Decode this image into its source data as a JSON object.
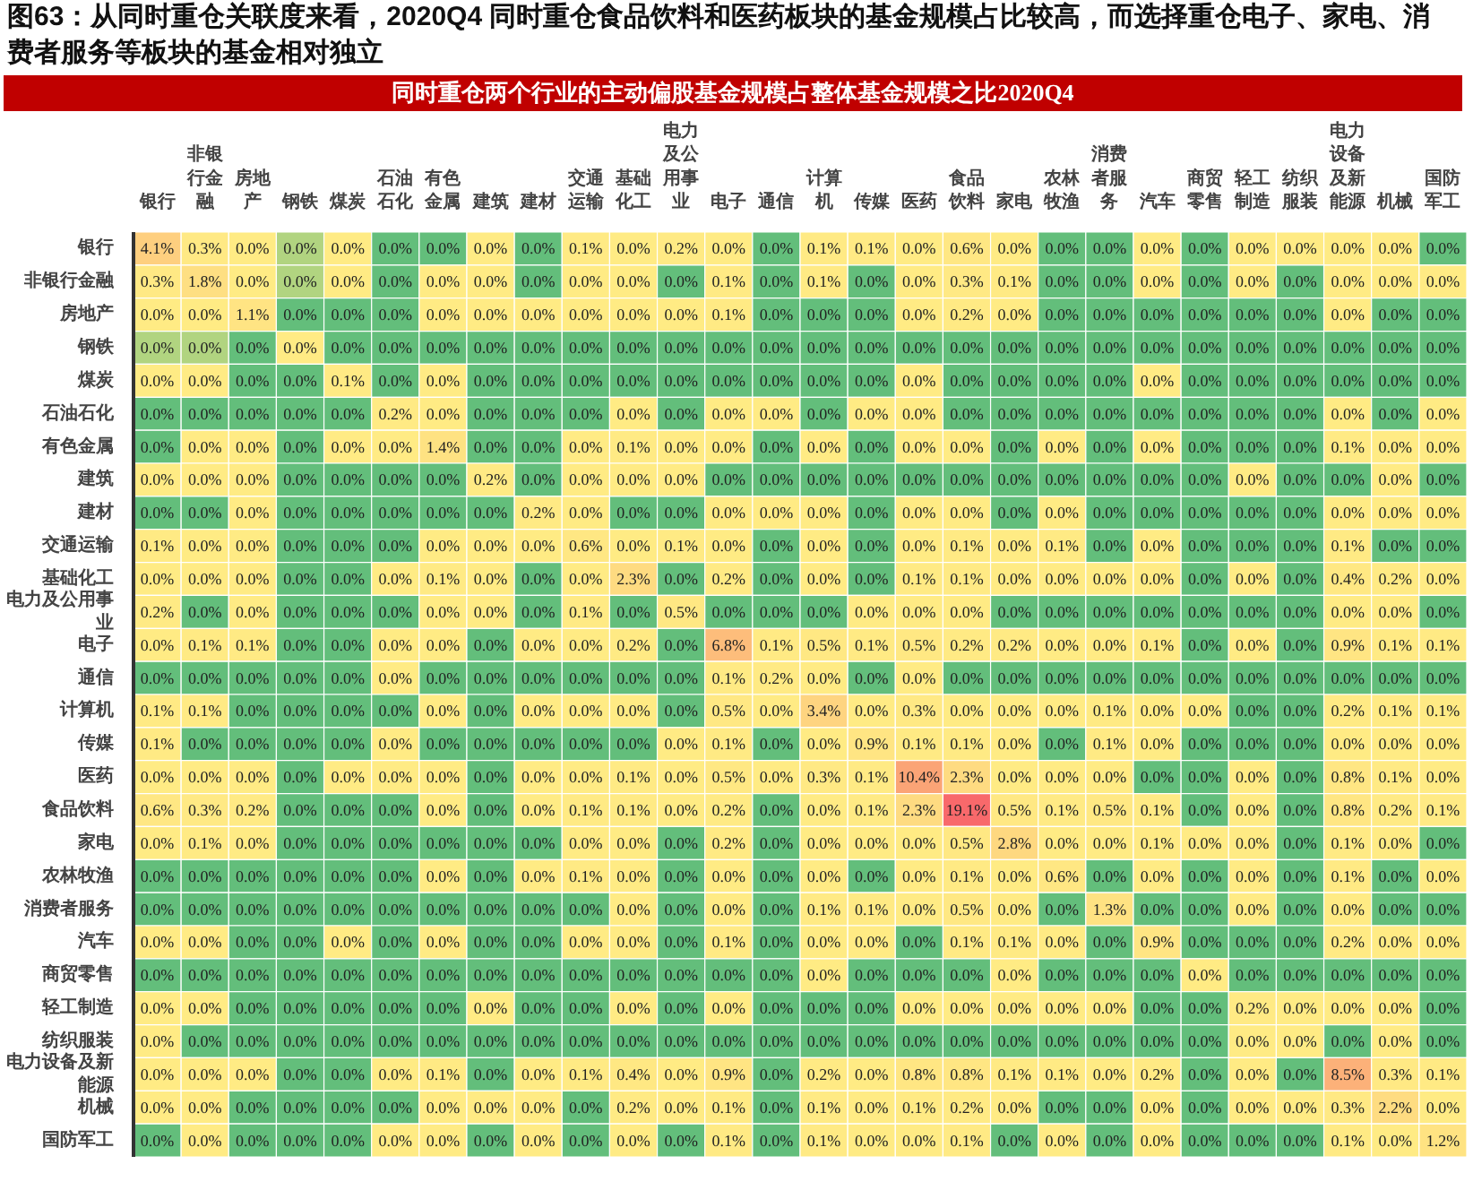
{
  "chart_data": {
    "type": "heatmap",
    "title": "图63：从同时重仓关联度来看，2020Q4 同时重仓食品饮料和医药板块的基金规模占比较高，而选择重仓电子、家电、消费者服务等板块的基金相对独立",
    "subtitle": "同时重仓两个行业的主动偏股基金规模占整体基金规模之比2020Q4",
    "categories": [
      "银行",
      "非银行金融",
      "房地产",
      "钢铁",
      "煤炭",
      "石油石化",
      "有色金属",
      "建筑",
      "建材",
      "交通运输",
      "基础化工",
      "电力及公用事业",
      "电子",
      "通信",
      "计算机",
      "传媒",
      "医药",
      "食品饮料",
      "家电",
      "农林牧渔",
      "消费者服务",
      "汽车",
      "商贸零售",
      "轻工制造",
      "纺织服装",
      "电力设备及新能源",
      "机械",
      "国防军工"
    ],
    "y_categories": [
      "银行",
      "非银行金融",
      "房地产",
      "钢铁",
      "煤炭",
      "石油石化",
      "有色金属",
      "建筑",
      "建材",
      "交通运输",
      "基础化工",
      "电力及公用事业",
      "电子",
      "通信",
      "计算机",
      "传媒",
      "医药",
      "食品饮料",
      "家电",
      "农林牧渔",
      "消费者服务",
      "汽车",
      "商贸零售",
      "轻工制造",
      "纺织服装",
      "电力设备及新能源",
      "机械",
      "国防军工"
    ],
    "cells": [
      [
        4.1,
        0.3,
        0.01,
        0.005,
        0.01,
        0,
        0,
        0.01,
        0,
        0.1,
        0.01,
        0.2,
        0.01,
        0,
        0.1,
        0.1,
        0.01,
        0.6,
        0.01,
        0,
        0,
        0.01,
        0,
        0.01,
        0.01,
        0.01,
        0.01,
        0
      ],
      [
        0.3,
        1.8,
        0.01,
        0.005,
        0.01,
        0,
        0.01,
        0.01,
        0,
        0.01,
        0.01,
        0,
        0.1,
        0,
        0.1,
        0,
        0.01,
        0.3,
        0.1,
        0,
        0,
        0.01,
        0,
        0.01,
        0,
        0.01,
        0.01,
        0.01
      ],
      [
        0.01,
        0.01,
        1.1,
        0,
        0,
        0,
        0.01,
        0.01,
        0.01,
        0.01,
        0.01,
        0.01,
        0.1,
        0,
        0,
        0,
        0.01,
        0.2,
        0.01,
        0,
        0,
        0,
        0,
        0,
        0,
        0.01,
        0,
        0
      ],
      [
        0.005,
        0.005,
        0,
        0.01,
        0,
        0,
        0,
        0,
        0,
        0,
        0,
        0,
        0,
        0,
        0,
        0,
        0,
        0,
        0,
        0,
        0,
        0,
        0,
        0,
        0,
        0,
        0,
        0
      ],
      [
        0.01,
        0.01,
        0,
        0,
        0.1,
        0,
        0.01,
        0,
        0,
        0,
        0,
        0,
        0,
        0,
        0,
        0,
        0.01,
        0,
        0,
        0,
        0,
        0.01,
        0,
        0,
        0,
        0,
        0,
        0
      ],
      [
        0,
        0,
        0,
        0,
        0,
        0.2,
        0.01,
        0,
        0,
        0,
        0.01,
        0,
        0.01,
        0.01,
        0,
        0.01,
        0.01,
        0,
        0,
        0,
        0,
        0,
        0,
        0,
        0,
        0.01,
        0,
        0.01
      ],
      [
        0,
        0.01,
        0.01,
        0,
        0.01,
        0.01,
        1.4,
        0,
        0,
        0.01,
        0.1,
        0.01,
        0.01,
        0,
        0.01,
        0,
        0.01,
        0.01,
        0,
        0.01,
        0,
        0.01,
        0,
        0,
        0,
        0.1,
        0.01,
        0.01
      ],
      [
        0.01,
        0.01,
        0.01,
        0,
        0,
        0,
        0,
        0.2,
        0,
        0.01,
        0.01,
        0.01,
        0,
        0,
        0,
        0,
        0,
        0,
        0,
        0,
        0,
        0,
        0,
        0.01,
        0,
        0,
        0.01,
        0
      ],
      [
        0,
        0,
        0.01,
        0,
        0,
        0,
        0,
        0,
        0.2,
        0.01,
        0,
        0,
        0.01,
        0.01,
        0.01,
        0,
        0.01,
        0.01,
        0,
        0.01,
        0,
        0,
        0,
        0,
        0,
        0.01,
        0.01,
        0.01
      ],
      [
        0.1,
        0.01,
        0.01,
        0,
        0,
        0,
        0.01,
        0.01,
        0.01,
        0.6,
        0.01,
        0.1,
        0.01,
        0,
        0.01,
        0,
        0.01,
        0.1,
        0.01,
        0.1,
        0,
        0.01,
        0,
        0,
        0,
        0.1,
        0,
        0
      ],
      [
        0.01,
        0.01,
        0.01,
        0,
        0,
        0.01,
        0.1,
        0.01,
        0,
        0.01,
        2.3,
        0,
        0.2,
        0,
        0.01,
        0,
        0.1,
        0.1,
        0.01,
        0.01,
        0.01,
        0.01,
        0,
        0.01,
        0,
        0.4,
        0.2,
        0.01
      ],
      [
        0.2,
        0,
        0.01,
        0,
        0,
        0,
        0.01,
        0.01,
        0,
        0.1,
        0,
        0.5,
        0,
        0,
        0,
        0.01,
        0.01,
        0.01,
        0,
        0,
        0,
        0,
        0,
        0,
        0,
        0.01,
        0.01,
        0
      ],
      [
        0.01,
        0.1,
        0.1,
        0,
        0,
        0.01,
        0.01,
        0,
        0.01,
        0.01,
        0.2,
        0,
        6.8,
        0.1,
        0.5,
        0.1,
        0.5,
        0.2,
        0.2,
        0.01,
        0.01,
        0.1,
        0,
        0.01,
        0,
        0.9,
        0.1,
        0.1
      ],
      [
        0,
        0,
        0,
        0,
        0,
        0.01,
        0,
        0,
        0,
        0,
        0,
        0,
        0.1,
        0.2,
        0.01,
        0,
        0.01,
        0,
        0,
        0,
        0,
        0,
        0,
        0,
        0,
        0,
        0,
        0
      ],
      [
        0.1,
        0.1,
        0,
        0,
        0,
        0,
        0.01,
        0,
        0.01,
        0.01,
        0.01,
        0,
        0.5,
        0.01,
        3.4,
        0.01,
        0.3,
        0.01,
        0.01,
        0.01,
        0.1,
        0.01,
        0.01,
        0,
        0,
        0.2,
        0.1,
        0.1
      ],
      [
        0.1,
        0,
        0,
        0,
        0,
        0.01,
        0,
        0,
        0,
        0,
        0,
        0.01,
        0.1,
        0,
        0.01,
        0.9,
        0.1,
        0.1,
        0.01,
        0,
        0.1,
        0.01,
        0,
        0,
        0,
        0.01,
        0.01,
        0.01
      ],
      [
        0.01,
        0.01,
        0.01,
        0,
        0.01,
        0.01,
        0.01,
        0,
        0.01,
        0.01,
        0.1,
        0.01,
        0.5,
        0.01,
        0.3,
        0.1,
        10.4,
        2.3,
        0.01,
        0.01,
        0.01,
        0,
        0,
        0.01,
        0,
        0.8,
        0.1,
        0.01
      ],
      [
        0.6,
        0.3,
        0.2,
        0,
        0,
        0,
        0.01,
        0,
        0.01,
        0.1,
        0.1,
        0.01,
        0.2,
        0,
        0.01,
        0.1,
        2.3,
        19.1,
        0.5,
        0.1,
        0.5,
        0.1,
        0,
        0.01,
        0,
        0.8,
        0.2,
        0.1
      ],
      [
        0.01,
        0.1,
        0.01,
        0,
        0,
        0,
        0,
        0,
        0,
        0.01,
        0.01,
        0,
        0.2,
        0,
        0.01,
        0.01,
        0.01,
        0.5,
        2.8,
        0.01,
        0.01,
        0.1,
        0.01,
        0.01,
        0,
        0.1,
        0.01,
        0
      ],
      [
        0,
        0,
        0,
        0,
        0,
        0,
        0.01,
        0,
        0.01,
        0.1,
        0.01,
        0,
        0.01,
        0,
        0.01,
        0,
        0.01,
        0.1,
        0.01,
        0.6,
        0,
        0.01,
        0,
        0.01,
        0,
        0.1,
        0,
        0.01
      ],
      [
        0,
        0,
        0,
        0,
        0,
        0,
        0,
        0,
        0,
        0,
        0.01,
        0,
        0.01,
        0,
        0.1,
        0.1,
        0.01,
        0.5,
        0.01,
        0,
        1.3,
        0,
        0,
        0.01,
        0,
        0.01,
        0,
        0
      ],
      [
        0.01,
        0.01,
        0,
        0,
        0.01,
        0,
        0.01,
        0,
        0,
        0.01,
        0.01,
        0,
        0.1,
        0,
        0.01,
        0.01,
        0,
        0.1,
        0.1,
        0.01,
        0,
        0.9,
        0,
        0,
        0,
        0.2,
        0.01,
        0.01
      ],
      [
        0,
        0,
        0,
        0,
        0,
        0,
        0,
        0,
        0,
        0,
        0,
        0,
        0,
        0,
        0.01,
        0,
        0,
        0,
        0.01,
        0,
        0,
        0,
        0.01,
        0,
        0,
        0,
        0,
        0
      ],
      [
        0.01,
        0.01,
        0,
        0,
        0,
        0,
        0,
        0.01,
        0,
        0,
        0.01,
        0,
        0.01,
        0,
        0,
        0,
        0.01,
        0.01,
        0.01,
        0.01,
        0.01,
        0,
        0,
        0.2,
        0.01,
        0.01,
        0.01,
        0
      ],
      [
        0.01,
        0,
        0,
        0,
        0,
        0,
        0,
        0,
        0,
        0,
        0,
        0,
        0,
        0,
        0,
        0,
        0,
        0,
        0,
        0,
        0,
        0,
        0,
        0.01,
        0.01,
        0,
        0.01,
        0
      ],
      [
        0.01,
        0.01,
        0.01,
        0,
        0,
        0.01,
        0.1,
        0,
        0.01,
        0.1,
        0.4,
        0.01,
        0.9,
        0,
        0.2,
        0.01,
        0.8,
        0.8,
        0.1,
        0.1,
        0.01,
        0.2,
        0,
        0.01,
        0,
        8.5,
        0.3,
        0.1
      ],
      [
        0.01,
        0.01,
        0,
        0,
        0,
        0,
        0.01,
        0.01,
        0.01,
        0,
        0.2,
        0.01,
        0.1,
        0,
        0.1,
        0.01,
        0.1,
        0.2,
        0.01,
        0,
        0,
        0.01,
        0,
        0.01,
        0.01,
        0.3,
        2.2,
        0.01
      ],
      [
        0,
        0.01,
        0,
        0,
        0,
        0.01,
        0.01,
        0,
        0.01,
        0,
        0.01,
        0,
        0.1,
        0,
        0.1,
        0.01,
        0.01,
        0.1,
        0,
        0.01,
        0,
        0.01,
        0,
        0,
        0,
        0.1,
        0.01,
        1.2
      ]
    ],
    "cell_labels": [
      [
        "4.1%",
        "0.3%",
        "0.0%",
        "0.0%",
        "0.0%",
        "0.0%",
        "0.0%",
        "0.0%",
        "0.0%",
        "0.1%",
        "0.0%",
        "0.2%",
        "0.0%",
        "0.0%",
        "0.1%",
        "0.1%",
        "0.0%",
        "0.6%",
        "0.0%",
        "0.0%",
        "0.0%",
        "0.0%",
        "0.0%",
        "0.0%",
        "0.0%",
        "0.0%",
        "0.0%",
        "0.0%"
      ],
      [
        "0.3%",
        "1.8%",
        "0.0%",
        "0.0%",
        "0.0%",
        "0.0%",
        "0.0%",
        "0.0%",
        "0.0%",
        "0.0%",
        "0.0%",
        "0.0%",
        "0.1%",
        "0.0%",
        "0.1%",
        "0.0%",
        "0.0%",
        "0.3%",
        "0.1%",
        "0.0%",
        "0.0%",
        "0.0%",
        "0.0%",
        "0.0%",
        "0.0%",
        "0.0%",
        "0.0%",
        "0.0%"
      ],
      [
        "0.0%",
        "0.0%",
        "1.1%",
        "0.0%",
        "0.0%",
        "0.0%",
        "0.0%",
        "0.0%",
        "0.0%",
        "0.0%",
        "0.0%",
        "0.0%",
        "0.1%",
        "0.0%",
        "0.0%",
        "0.0%",
        "0.0%",
        "0.2%",
        "0.0%",
        "0.0%",
        "0.0%",
        "0.0%",
        "0.0%",
        "0.0%",
        "0.0%",
        "0.0%",
        "0.0%",
        "0.0%"
      ],
      [
        "0.0%",
        "0.0%",
        "0.0%",
        "0.0%",
        "0.0%",
        "0.0%",
        "0.0%",
        "0.0%",
        "0.0%",
        "0.0%",
        "0.0%",
        "0.0%",
        "0.0%",
        "0.0%",
        "0.0%",
        "0.0%",
        "0.0%",
        "0.0%",
        "0.0%",
        "0.0%",
        "0.0%",
        "0.0%",
        "0.0%",
        "0.0%",
        "0.0%",
        "0.0%",
        "0.0%",
        "0.0%"
      ],
      [
        "0.0%",
        "0.0%",
        "0.0%",
        "0.0%",
        "0.1%",
        "0.0%",
        "0.0%",
        "0.0%",
        "0.0%",
        "0.0%",
        "0.0%",
        "0.0%",
        "0.0%",
        "0.0%",
        "0.0%",
        "0.0%",
        "0.0%",
        "0.0%",
        "0.0%",
        "0.0%",
        "0.0%",
        "0.0%",
        "0.0%",
        "0.0%",
        "0.0%",
        "0.0%",
        "0.0%",
        "0.0%"
      ],
      [
        "0.0%",
        "0.0%",
        "0.0%",
        "0.0%",
        "0.0%",
        "0.2%",
        "0.0%",
        "0.0%",
        "0.0%",
        "0.0%",
        "0.0%",
        "0.0%",
        "0.0%",
        "0.0%",
        "0.0%",
        "0.0%",
        "0.0%",
        "0.0%",
        "0.0%",
        "0.0%",
        "0.0%",
        "0.0%",
        "0.0%",
        "0.0%",
        "0.0%",
        "0.0%",
        "0.0%",
        "0.0%"
      ],
      [
        "0.0%",
        "0.0%",
        "0.0%",
        "0.0%",
        "0.0%",
        "0.0%",
        "1.4%",
        "0.0%",
        "0.0%",
        "0.0%",
        "0.1%",
        "0.0%",
        "0.0%",
        "0.0%",
        "0.0%",
        "0.0%",
        "0.0%",
        "0.0%",
        "0.0%",
        "0.0%",
        "0.0%",
        "0.0%",
        "0.0%",
        "0.0%",
        "0.0%",
        "0.1%",
        "0.0%",
        "0.0%"
      ],
      [
        "0.0%",
        "0.0%",
        "0.0%",
        "0.0%",
        "0.0%",
        "0.0%",
        "0.0%",
        "0.2%",
        "0.0%",
        "0.0%",
        "0.0%",
        "0.0%",
        "0.0%",
        "0.0%",
        "0.0%",
        "0.0%",
        "0.0%",
        "0.0%",
        "0.0%",
        "0.0%",
        "0.0%",
        "0.0%",
        "0.0%",
        "0.0%",
        "0.0%",
        "0.0%",
        "0.0%",
        "0.0%"
      ],
      [
        "0.0%",
        "0.0%",
        "0.0%",
        "0.0%",
        "0.0%",
        "0.0%",
        "0.0%",
        "0.0%",
        "0.2%",
        "0.0%",
        "0.0%",
        "0.0%",
        "0.0%",
        "0.0%",
        "0.0%",
        "0.0%",
        "0.0%",
        "0.0%",
        "0.0%",
        "0.0%",
        "0.0%",
        "0.0%",
        "0.0%",
        "0.0%",
        "0.0%",
        "0.0%",
        "0.0%",
        "0.0%"
      ],
      [
        "0.1%",
        "0.0%",
        "0.0%",
        "0.0%",
        "0.0%",
        "0.0%",
        "0.0%",
        "0.0%",
        "0.0%",
        "0.6%",
        "0.0%",
        "0.1%",
        "0.0%",
        "0.0%",
        "0.0%",
        "0.0%",
        "0.0%",
        "0.1%",
        "0.0%",
        "0.1%",
        "0.0%",
        "0.0%",
        "0.0%",
        "0.0%",
        "0.0%",
        "0.1%",
        "0.0%",
        "0.0%"
      ],
      [
        "0.0%",
        "0.0%",
        "0.0%",
        "0.0%",
        "0.0%",
        "0.0%",
        "0.1%",
        "0.0%",
        "0.0%",
        "0.0%",
        "2.3%",
        "0.0%",
        "0.2%",
        "0.0%",
        "0.0%",
        "0.0%",
        "0.1%",
        "0.1%",
        "0.0%",
        "0.0%",
        "0.0%",
        "0.0%",
        "0.0%",
        "0.0%",
        "0.0%",
        "0.4%",
        "0.2%",
        "0.0%"
      ],
      [
        "0.2%",
        "0.0%",
        "0.0%",
        "0.0%",
        "0.0%",
        "0.0%",
        "0.0%",
        "0.0%",
        "0.0%",
        "0.1%",
        "0.0%",
        "0.5%",
        "0.0%",
        "0.0%",
        "0.0%",
        "0.0%",
        "0.0%",
        "0.0%",
        "0.0%",
        "0.0%",
        "0.0%",
        "0.0%",
        "0.0%",
        "0.0%",
        "0.0%",
        "0.0%",
        "0.0%",
        "0.0%"
      ],
      [
        "0.0%",
        "0.1%",
        "0.1%",
        "0.0%",
        "0.0%",
        "0.0%",
        "0.0%",
        "0.0%",
        "0.0%",
        "0.0%",
        "0.2%",
        "0.0%",
        "6.8%",
        "0.1%",
        "0.5%",
        "0.1%",
        "0.5%",
        "0.2%",
        "0.2%",
        "0.0%",
        "0.0%",
        "0.1%",
        "0.0%",
        "0.0%",
        "0.0%",
        "0.9%",
        "0.1%",
        "0.1%"
      ],
      [
        "0.0%",
        "0.0%",
        "0.0%",
        "0.0%",
        "0.0%",
        "0.0%",
        "0.0%",
        "0.0%",
        "0.0%",
        "0.0%",
        "0.0%",
        "0.0%",
        "0.1%",
        "0.2%",
        "0.0%",
        "0.0%",
        "0.0%",
        "0.0%",
        "0.0%",
        "0.0%",
        "0.0%",
        "0.0%",
        "0.0%",
        "0.0%",
        "0.0%",
        "0.0%",
        "0.0%",
        "0.0%"
      ],
      [
        "0.1%",
        "0.1%",
        "0.0%",
        "0.0%",
        "0.0%",
        "0.0%",
        "0.0%",
        "0.0%",
        "0.0%",
        "0.0%",
        "0.0%",
        "0.0%",
        "0.5%",
        "0.0%",
        "3.4%",
        "0.0%",
        "0.3%",
        "0.0%",
        "0.0%",
        "0.0%",
        "0.1%",
        "0.0%",
        "0.0%",
        "0.0%",
        "0.0%",
        "0.2%",
        "0.1%",
        "0.1%"
      ],
      [
        "0.1%",
        "0.0%",
        "0.0%",
        "0.0%",
        "0.0%",
        "0.0%",
        "0.0%",
        "0.0%",
        "0.0%",
        "0.0%",
        "0.0%",
        "0.0%",
        "0.1%",
        "0.0%",
        "0.0%",
        "0.9%",
        "0.1%",
        "0.1%",
        "0.0%",
        "0.0%",
        "0.1%",
        "0.0%",
        "0.0%",
        "0.0%",
        "0.0%",
        "0.0%",
        "0.0%",
        "0.0%"
      ],
      [
        "0.0%",
        "0.0%",
        "0.0%",
        "0.0%",
        "0.0%",
        "0.0%",
        "0.0%",
        "0.0%",
        "0.0%",
        "0.0%",
        "0.1%",
        "0.0%",
        "0.5%",
        "0.0%",
        "0.3%",
        "0.1%",
        "10.4%",
        "2.3%",
        "0.0%",
        "0.0%",
        "0.0%",
        "0.0%",
        "0.0%",
        "0.0%",
        "0.0%",
        "0.8%",
        "0.1%",
        "0.0%"
      ],
      [
        "0.6%",
        "0.3%",
        "0.2%",
        "0.0%",
        "0.0%",
        "0.0%",
        "0.0%",
        "0.0%",
        "0.0%",
        "0.1%",
        "0.1%",
        "0.0%",
        "0.2%",
        "0.0%",
        "0.0%",
        "0.1%",
        "2.3%",
        "19.1%",
        "0.5%",
        "0.1%",
        "0.5%",
        "0.1%",
        "0.0%",
        "0.0%",
        "0.0%",
        "0.8%",
        "0.2%",
        "0.1%"
      ],
      [
        "0.0%",
        "0.1%",
        "0.0%",
        "0.0%",
        "0.0%",
        "0.0%",
        "0.0%",
        "0.0%",
        "0.0%",
        "0.0%",
        "0.0%",
        "0.0%",
        "0.2%",
        "0.0%",
        "0.0%",
        "0.0%",
        "0.0%",
        "0.5%",
        "2.8%",
        "0.0%",
        "0.0%",
        "0.1%",
        "0.0%",
        "0.0%",
        "0.0%",
        "0.1%",
        "0.0%",
        "0.0%"
      ],
      [
        "0.0%",
        "0.0%",
        "0.0%",
        "0.0%",
        "0.0%",
        "0.0%",
        "0.0%",
        "0.0%",
        "0.0%",
        "0.1%",
        "0.0%",
        "0.0%",
        "0.0%",
        "0.0%",
        "0.0%",
        "0.0%",
        "0.0%",
        "0.1%",
        "0.0%",
        "0.6%",
        "0.0%",
        "0.0%",
        "0.0%",
        "0.0%",
        "0.0%",
        "0.1%",
        "0.0%",
        "0.0%"
      ],
      [
        "0.0%",
        "0.0%",
        "0.0%",
        "0.0%",
        "0.0%",
        "0.0%",
        "0.0%",
        "0.0%",
        "0.0%",
        "0.0%",
        "0.0%",
        "0.0%",
        "0.0%",
        "0.0%",
        "0.1%",
        "0.1%",
        "0.0%",
        "0.5%",
        "0.0%",
        "0.0%",
        "1.3%",
        "0.0%",
        "0.0%",
        "0.0%",
        "0.0%",
        "0.0%",
        "0.0%",
        "0.0%"
      ],
      [
        "0.0%",
        "0.0%",
        "0.0%",
        "0.0%",
        "0.0%",
        "0.0%",
        "0.0%",
        "0.0%",
        "0.0%",
        "0.0%",
        "0.0%",
        "0.0%",
        "0.1%",
        "0.0%",
        "0.0%",
        "0.0%",
        "0.0%",
        "0.1%",
        "0.1%",
        "0.0%",
        "0.0%",
        "0.9%",
        "0.0%",
        "0.0%",
        "0.0%",
        "0.2%",
        "0.0%",
        "0.0%"
      ],
      [
        "0.0%",
        "0.0%",
        "0.0%",
        "0.0%",
        "0.0%",
        "0.0%",
        "0.0%",
        "0.0%",
        "0.0%",
        "0.0%",
        "0.0%",
        "0.0%",
        "0.0%",
        "0.0%",
        "0.0%",
        "0.0%",
        "0.0%",
        "0.0%",
        "0.0%",
        "0.0%",
        "0.0%",
        "0.0%",
        "0.0%",
        "0.0%",
        "0.0%",
        "0.0%",
        "0.0%",
        "0.0%"
      ],
      [
        "0.0%",
        "0.0%",
        "0.0%",
        "0.0%",
        "0.0%",
        "0.0%",
        "0.0%",
        "0.0%",
        "0.0%",
        "0.0%",
        "0.0%",
        "0.0%",
        "0.0%",
        "0.0%",
        "0.0%",
        "0.0%",
        "0.0%",
        "0.0%",
        "0.0%",
        "0.0%",
        "0.0%",
        "0.0%",
        "0.0%",
        "0.2%",
        "0.0%",
        "0.0%",
        "0.0%",
        "0.0%"
      ],
      [
        "0.0%",
        "0.0%",
        "0.0%",
        "0.0%",
        "0.0%",
        "0.0%",
        "0.0%",
        "0.0%",
        "0.0%",
        "0.0%",
        "0.0%",
        "0.0%",
        "0.0%",
        "0.0%",
        "0.0%",
        "0.0%",
        "0.0%",
        "0.0%",
        "0.0%",
        "0.0%",
        "0.0%",
        "0.0%",
        "0.0%",
        "0.0%",
        "0.0%",
        "0.0%",
        "0.0%",
        "0.0%"
      ],
      [
        "0.0%",
        "0.0%",
        "0.0%",
        "0.0%",
        "0.0%",
        "0.0%",
        "0.1%",
        "0.0%",
        "0.0%",
        "0.1%",
        "0.4%",
        "0.0%",
        "0.9%",
        "0.0%",
        "0.2%",
        "0.0%",
        "0.8%",
        "0.8%",
        "0.1%",
        "0.1%",
        "0.0%",
        "0.2%",
        "0.0%",
        "0.0%",
        "0.0%",
        "8.5%",
        "0.3%",
        "0.1%"
      ],
      [
        "0.0%",
        "0.0%",
        "0.0%",
        "0.0%",
        "0.0%",
        "0.0%",
        "0.0%",
        "0.0%",
        "0.0%",
        "0.0%",
        "0.2%",
        "0.0%",
        "0.1%",
        "0.0%",
        "0.1%",
        "0.0%",
        "0.1%",
        "0.2%",
        "0.0%",
        "0.0%",
        "0.0%",
        "0.0%",
        "0.0%",
        "0.0%",
        "0.0%",
        "0.3%",
        "2.2%",
        "0.0%"
      ],
      [
        "0.0%",
        "0.0%",
        "0.0%",
        "0.0%",
        "0.0%",
        "0.0%",
        "0.0%",
        "0.0%",
        "0.0%",
        "0.0%",
        "0.0%",
        "0.0%",
        "0.1%",
        "0.0%",
        "0.1%",
        "0.0%",
        "0.0%",
        "0.1%",
        "0.0%",
        "0.0%",
        "0.0%",
        "0.0%",
        "0.0%",
        "0.0%",
        "0.0%",
        "0.1%",
        "0.0%",
        "1.2%"
      ]
    ]
  }
}
